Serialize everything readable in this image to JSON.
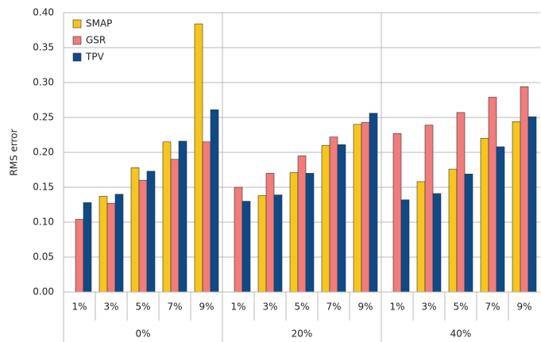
{
  "chart_data": {
    "type": "bar",
    "y_label": "RMS error",
    "categories": [
      "1%",
      "3%",
      "5%",
      "7%",
      "9%",
      "1%",
      "3%",
      "5%",
      "7%",
      "9%",
      "1%",
      "3%",
      "5%",
      "7%",
      "9%"
    ],
    "groups": [
      "0%",
      "20%",
      "40%"
    ],
    "series": [
      {
        "name": "SMAP",
        "color": "#f7c520",
        "values": [
          null,
          0.137,
          0.178,
          0.215,
          0.384,
          null,
          0.138,
          0.171,
          0.21,
          0.24,
          null,
          0.158,
          0.176,
          0.22,
          0.244
        ]
      },
      {
        "name": "GSR",
        "color": "#f07c7c",
        "values": [
          0.104,
          0.127,
          0.16,
          0.19,
          0.215,
          0.15,
          0.17,
          0.195,
          0.222,
          0.243,
          0.227,
          0.239,
          0.257,
          0.279,
          0.294
        ]
      },
      {
        "name": "TPV",
        "color": "#0e4a88",
        "values": [
          0.128,
          0.14,
          0.173,
          0.216,
          0.261,
          0.13,
          0.139,
          0.17,
          0.211,
          0.256,
          0.132,
          0.141,
          0.169,
          0.208,
          0.251
        ]
      }
    ],
    "ylim": [
      0,
      0.4
    ],
    "yticks": [
      {
        "value": 0,
        "label": "0.00"
      },
      {
        "value": 0.05,
        "label": "0.05"
      },
      {
        "value": 0.1,
        "label": "0.10"
      },
      {
        "value": 0.15,
        "label": "0.15"
      },
      {
        "value": 0.2,
        "label": "0.20"
      },
      {
        "value": 0.25,
        "label": "0.25"
      },
      {
        "value": 0.3,
        "label": "0.30"
      },
      {
        "value": 0.35,
        "label": "0.35"
      },
      {
        "value": 0.4,
        "label": "0.40"
      }
    ],
    "grid": true,
    "legend": "top-left"
  }
}
